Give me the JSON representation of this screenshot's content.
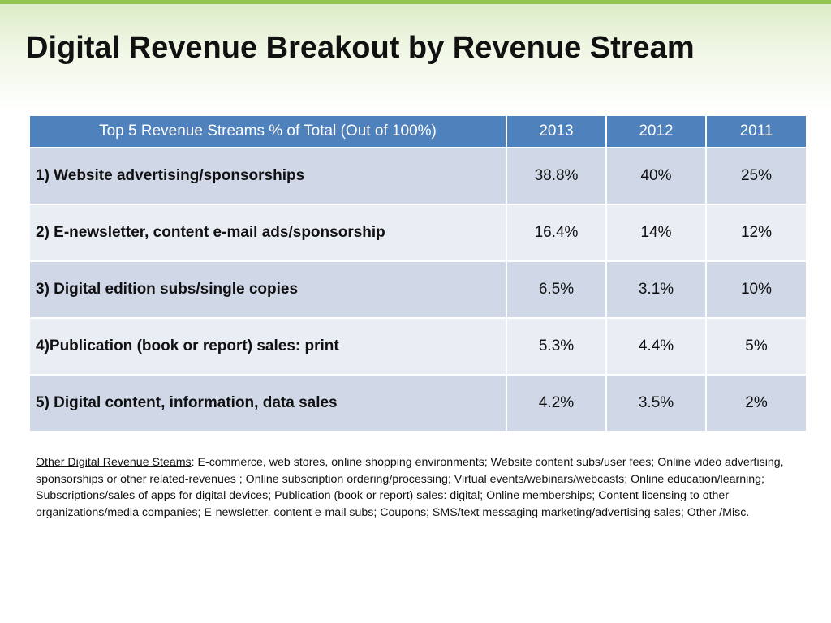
{
  "slide": {
    "title": "Digital Revenue Breakout by Revenue Stream"
  },
  "table": {
    "headers": [
      "Top 5 Revenue Streams % of Total (Out of 100%)",
      "2013",
      "2012",
      "2011"
    ],
    "rows": [
      {
        "stream": "1) Website advertising/sponsorships",
        "v2013": "38.8%",
        "v2012": "40%",
        "v2011": "25%"
      },
      {
        "stream": "2) E-newsletter, content e-mail ads/sponsorship",
        "v2013": "16.4%",
        "v2012": "14%",
        "v2011": "12%"
      },
      {
        "stream": "3) Digital edition subs/single copies",
        "v2013": "6.5%",
        "v2012": "3.1%",
        "v2011": "10%"
      },
      {
        "stream": "4)Publication (book or report) sales: print",
        "v2013": "5.3%",
        "v2012": "4.4%",
        "v2011": "5%"
      },
      {
        "stream": "5) Digital content, information, data sales",
        "v2013": "4.2%",
        "v2012": "3.5%",
        "v2011": "2%"
      }
    ]
  },
  "note": {
    "label": "Other Digital Revenue Steams",
    "text": ":  E-commerce, web stores, online shopping environments; Website content subs/user fees; Online video advertising, sponsorships or other related-revenues ; Online subscription ordering/processing; Virtual events/webinars/webcasts; Online education/learning; Subscriptions/sales of apps for digital devices; Publication (book or report) sales: digital; Online memberships; Content licensing to other organizations/media companies; E-newsletter, content e-mail subs; Coupons; SMS/text messaging marketing/advertising sales; Other /Misc."
  },
  "colors": {
    "header_bg": "#4f81bd",
    "row_odd_bg": "#d0d8e8",
    "row_even_bg": "#e9edf4",
    "accent_green": "#92c353"
  }
}
